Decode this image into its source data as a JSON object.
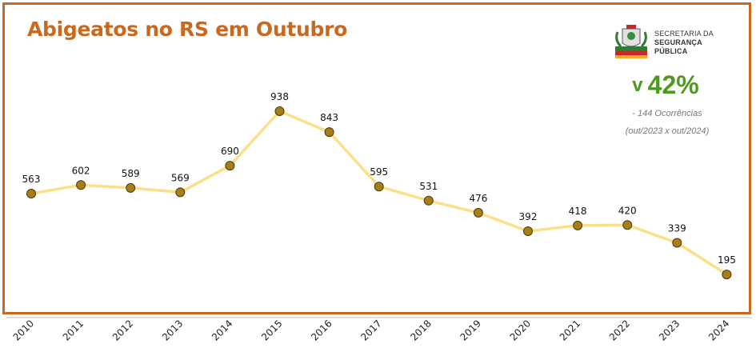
{
  "header": {
    "title": "Abigeatos no RS em Outubro",
    "org_line1": "SECRETARIA DA",
    "org_line2": "SEGURANÇA",
    "org_line3": "PÚBLICA"
  },
  "kpi": {
    "arrow": "v",
    "percent": "42%",
    "occurrences": "- 144 Ocorrências",
    "comparison": "(out/2023 x out/2024)",
    "color": "#4e9a1e"
  },
  "colors": {
    "line": "#fbe08a",
    "marker": "#a87e16",
    "marker_stroke": "#4a3a10",
    "border": "#c8691f"
  },
  "chart_data": {
    "type": "line",
    "categories": [
      "2010",
      "2011",
      "2012",
      "2013",
      "2014",
      "2015",
      "2016",
      "2017",
      "2018",
      "2019",
      "2020",
      "2021",
      "2022",
      "2023",
      "2024"
    ],
    "values": [
      563,
      602,
      589,
      569,
      690,
      938,
      843,
      595,
      531,
      476,
      392,
      418,
      420,
      339,
      195
    ],
    "data_labels": [
      "563",
      "602",
      "589",
      "569",
      "690",
      "938",
      "843",
      "595",
      "531",
      "476",
      "392",
      "418",
      "420",
      "339",
      "195"
    ],
    "title": "Abigeatos no RS em Outubro",
    "xlabel": "",
    "ylabel": "",
    "ylim": [
      0,
      1100
    ],
    "grid": false,
    "legend": "none"
  }
}
